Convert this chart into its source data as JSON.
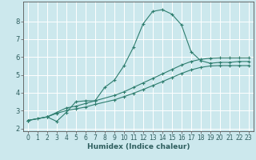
{
  "xlabel": "Humidex (Indice chaleur)",
  "bg_color": "#cce8ed",
  "grid_color": "#ffffff",
  "line_color": "#2e7d6e",
  "axis_color": "#555555",
  "xlim": [
    -0.5,
    23.5
  ],
  "ylim": [
    1.85,
    9.1
  ],
  "yticks": [
    2,
    3,
    4,
    5,
    6,
    7,
    8
  ],
  "xticks": [
    0,
    1,
    2,
    3,
    4,
    5,
    6,
    7,
    8,
    9,
    10,
    11,
    12,
    13,
    14,
    15,
    16,
    17,
    18,
    19,
    20,
    21,
    22,
    23
  ],
  "xlabel_fontsize": 6.5,
  "tick_fontsize": 5.5,
  "series1_x": [
    0,
    1,
    2,
    3,
    4,
    5,
    6,
    7,
    8,
    9,
    10,
    11,
    12,
    13,
    14,
    15,
    16,
    17,
    18,
    19,
    20,
    21,
    22,
    23
  ],
  "series1_y": [
    2.45,
    2.55,
    2.65,
    2.4,
    2.9,
    3.5,
    3.55,
    3.55,
    4.3,
    4.7,
    5.5,
    6.55,
    7.85,
    8.55,
    8.65,
    8.4,
    7.8,
    6.3,
    5.8,
    5.65,
    5.7,
    5.7,
    5.75,
    5.75
  ],
  "series2_x": [
    0,
    2,
    3,
    4,
    5,
    6,
    7,
    9,
    10,
    11,
    12,
    13,
    14,
    15,
    16,
    17,
    18,
    19,
    20,
    21,
    22,
    23
  ],
  "series2_y": [
    2.45,
    2.65,
    2.9,
    3.15,
    3.25,
    3.4,
    3.55,
    3.85,
    4.05,
    4.3,
    4.55,
    4.8,
    5.05,
    5.3,
    5.55,
    5.75,
    5.87,
    5.93,
    5.95,
    5.95,
    5.95,
    5.95
  ],
  "series3_x": [
    0,
    2,
    3,
    4,
    5,
    6,
    7,
    9,
    10,
    11,
    12,
    13,
    14,
    15,
    16,
    17,
    18,
    19,
    20,
    21,
    22,
    23
  ],
  "series3_y": [
    2.45,
    2.65,
    2.85,
    3.0,
    3.1,
    3.2,
    3.35,
    3.6,
    3.78,
    3.97,
    4.18,
    4.4,
    4.62,
    4.85,
    5.08,
    5.28,
    5.42,
    5.5,
    5.52,
    5.52,
    5.52,
    5.52
  ]
}
